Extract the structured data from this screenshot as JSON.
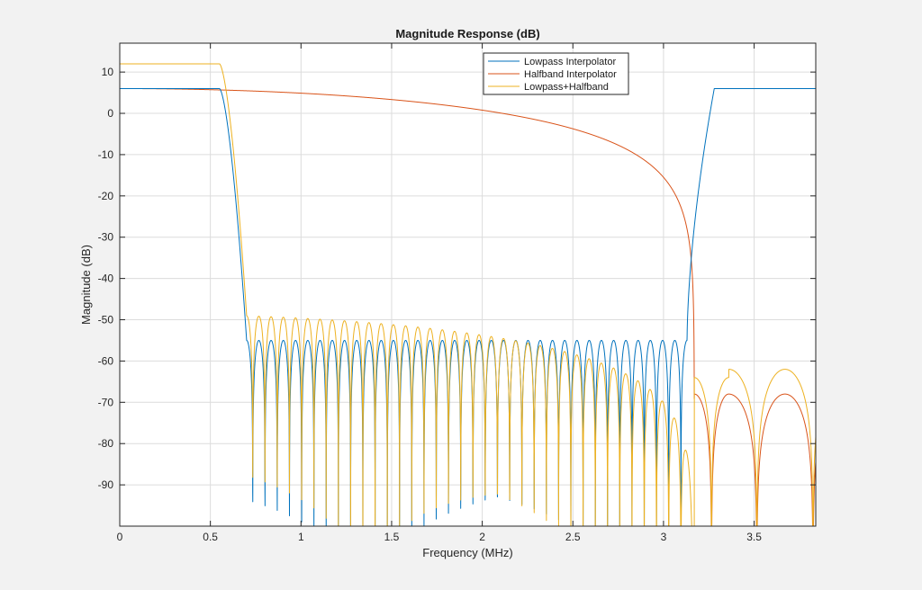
{
  "chart_data": {
    "type": "line",
    "title": "Magnitude Response (dB)",
    "xlabel": "Frequency (MHz)",
    "ylabel": "Magnitude (dB)",
    "xlim": [
      0,
      3.84
    ],
    "ylim": [
      -100,
      17
    ],
    "xticks": [
      0,
      0.5,
      1,
      1.5,
      2,
      2.5,
      3,
      3.5
    ],
    "xtick_labels": [
      "0",
      "0.5",
      "1",
      "1.5",
      "2",
      "2.5",
      "3",
      "3.5"
    ],
    "yticks": [
      10,
      0,
      -10,
      -20,
      -30,
      -40,
      -50,
      -60,
      -70,
      -80,
      -90
    ],
    "ytick_labels": [
      "10",
      "0",
      "-10",
      "-20",
      "-30",
      "-40",
      "-50",
      "-60",
      "-70",
      "-80",
      "-90"
    ],
    "grid": true,
    "legend_position": "top-right",
    "series": [
      {
        "name": "Lowpass Interpolator",
        "color": "#0072bd",
        "shape": "lowpass",
        "passband_db": 6,
        "passband_edge_mhz": 0.55,
        "stopband_start_mhz": 0.7,
        "stopband_end_mhz": 3.13,
        "ripple_peak_db": -55,
        "lobe_count": 36,
        "image_start_mhz": 3.14,
        "image_passband_mhz": 3.28,
        "points": [
          [
            0,
            6
          ],
          [
            0.5,
            6
          ],
          [
            0.55,
            5.5
          ],
          [
            0.6,
            -2
          ],
          [
            0.65,
            -20
          ],
          [
            0.69,
            -45
          ],
          [
            0.71,
            -55
          ],
          [
            3.13,
            -55
          ],
          [
            3.16,
            -30
          ],
          [
            3.2,
            -5
          ],
          [
            3.28,
            6
          ],
          [
            3.84,
            6
          ]
        ]
      },
      {
        "name": "Halfband Interpolator",
        "color": "#d95319",
        "shape": "halfband",
        "passband_db": 6,
        "null_mhz": [
          3.17,
          3.36,
          3.67
        ],
        "lobe_peaks_db": [
          -68,
          -68
        ],
        "points": [
          [
            0,
            6
          ],
          [
            1.0,
            5.8
          ],
          [
            1.5,
            4.5
          ],
          [
            1.92,
            1
          ],
          [
            2.4,
            -8
          ],
          [
            2.8,
            -24
          ],
          [
            3.0,
            -40
          ],
          [
            3.1,
            -55
          ],
          [
            3.16,
            -70
          ],
          [
            3.25,
            -68
          ],
          [
            3.36,
            -100
          ],
          [
            3.5,
            -68
          ],
          [
            3.67,
            -100
          ],
          [
            3.84,
            -68
          ]
        ]
      },
      {
        "name": "Lowpass+Halfband",
        "color": "#edb120",
        "shape": "combined",
        "passband_db": 12,
        "ripple_peak_start_db": -49,
        "null_mhz": [
          3.17,
          3.36,
          3.67
        ],
        "lobe_peaks_db": [
          -64,
          -62
        ],
        "points": [
          [
            0,
            12
          ],
          [
            0.5,
            12
          ],
          [
            0.55,
            11.5
          ],
          [
            0.6,
            4
          ],
          [
            0.65,
            -14
          ],
          [
            0.69,
            -40
          ],
          [
            0.71,
            -49
          ],
          [
            1.2,
            -49.5
          ],
          [
            1.8,
            -55
          ],
          [
            2.3,
            -62
          ],
          [
            2.7,
            -74
          ],
          [
            3.0,
            -90
          ],
          [
            3.17,
            -100
          ],
          [
            3.27,
            -64
          ],
          [
            3.36,
            -100
          ],
          [
            3.5,
            -62
          ],
          [
            3.67,
            -100
          ],
          [
            3.84,
            -62
          ]
        ]
      }
    ]
  }
}
